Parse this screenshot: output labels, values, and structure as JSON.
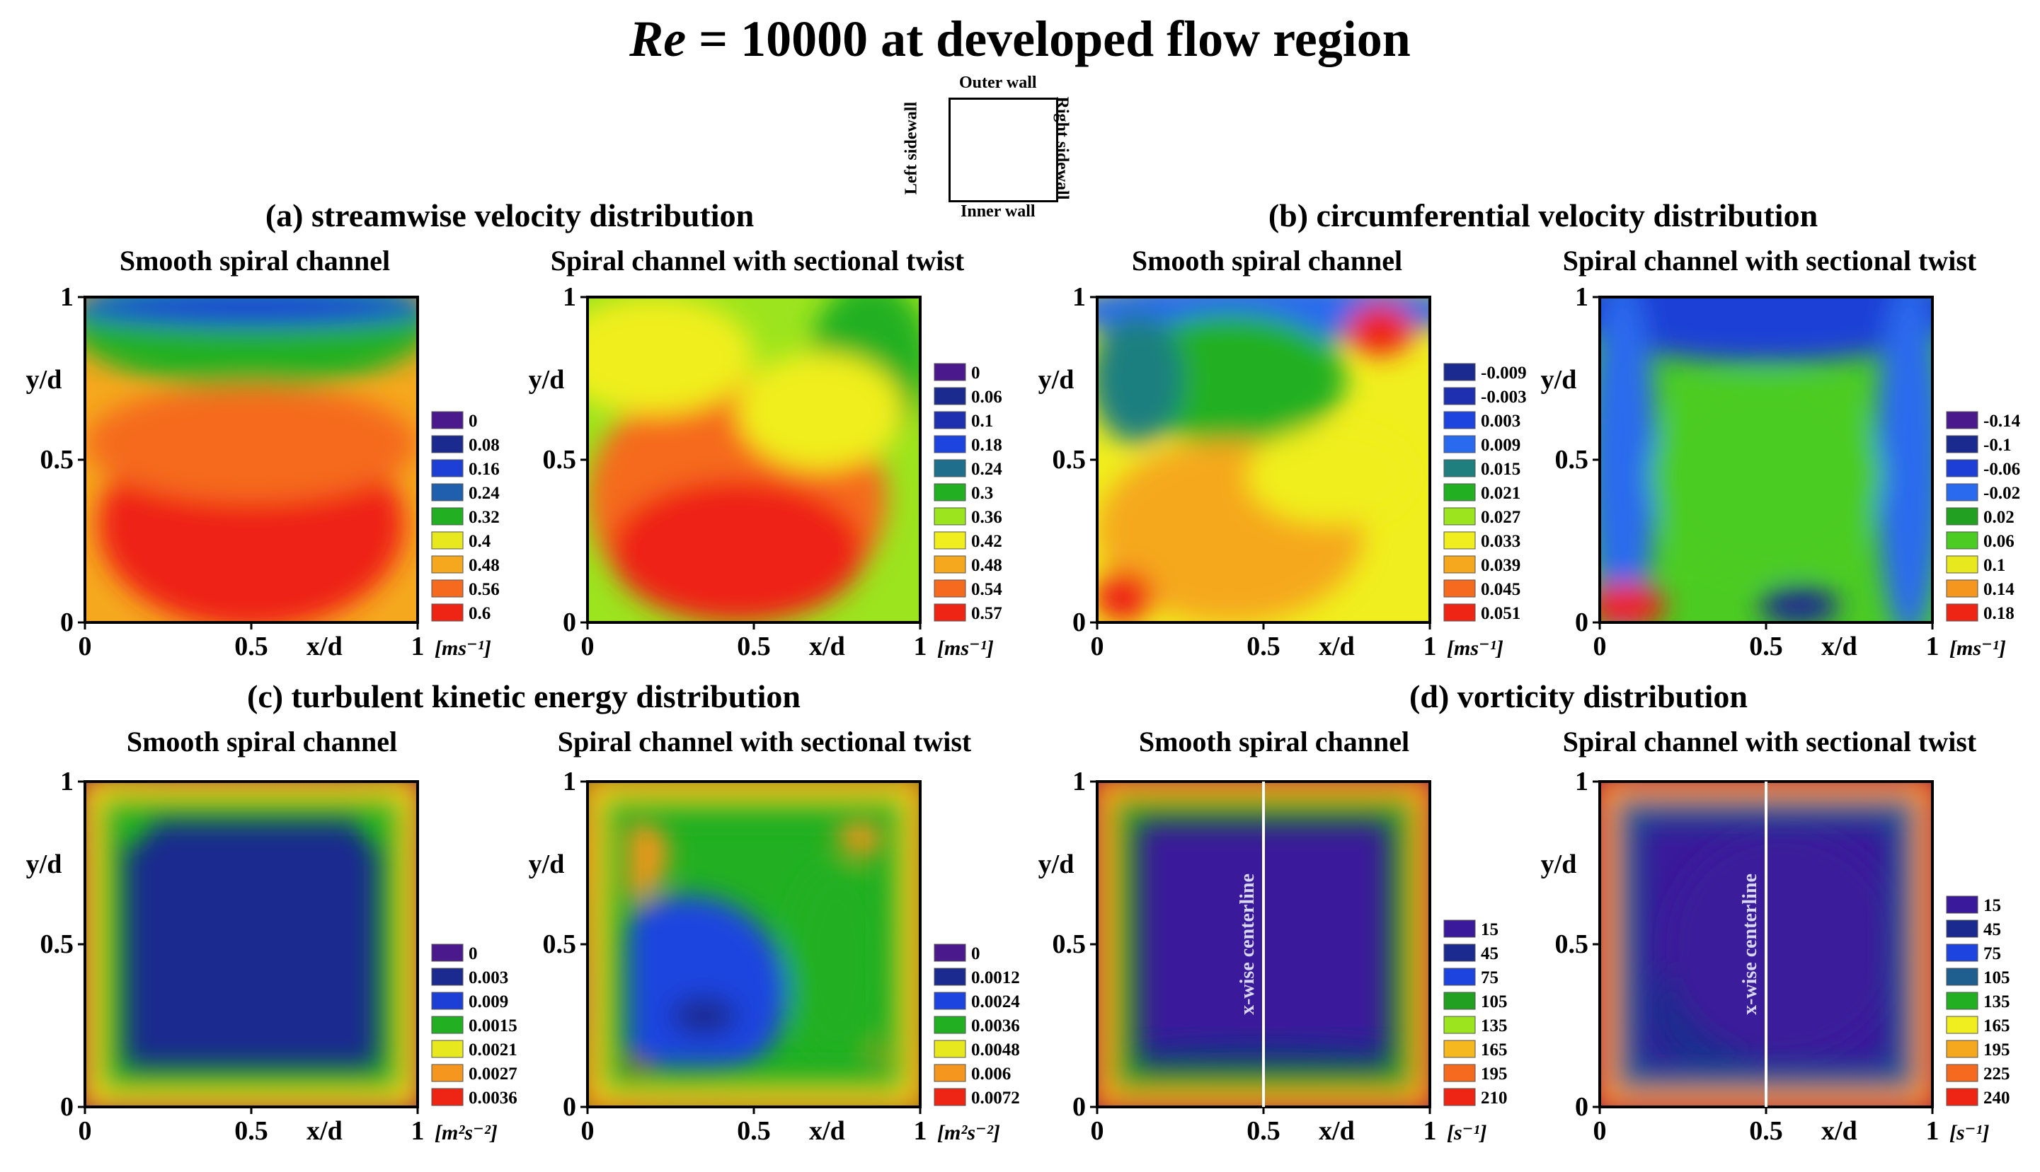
{
  "title": {
    "variable": "Re",
    "rest": " = 10000 at developed flow region"
  },
  "schematic": {
    "top": "Outer wall",
    "bottom": "Inner wall",
    "left": "Left sidewall",
    "right": "Right sidewall"
  },
  "axes": {
    "xlabel": "x/d",
    "ylabel": "y/d",
    "ticks": [
      "0",
      "0.5",
      "1"
    ]
  },
  "groups": [
    {
      "title": "(a) streamwise velocity distribution",
      "left_sub": "Smooth spiral channel",
      "right_sub": "Spiral channel with sectional twist"
    },
    {
      "title": "(b) circumferential velocity distribution",
      "left_sub": "Smooth spiral channel",
      "right_sub": "Spiral channel with sectional twist"
    },
    {
      "title": "(c) turbulent kinetic energy distribution",
      "left_sub": "Smooth spiral channel",
      "right_sub": "Spiral channel with sectional twist"
    },
    {
      "title": "(d) vorticity distribution",
      "left_sub": "Smooth spiral channel",
      "right_sub": "Spiral channel with sectional twist"
    }
  ],
  "centerline_label": "x-wise centerline",
  "chart_data": [
    {
      "type": "heatmap",
      "title": "Streamwise velocity — Smooth spiral channel",
      "xlabel": "x/d",
      "ylabel": "y/d",
      "xlim": [
        0,
        1
      ],
      "ylim": [
        0,
        1
      ],
      "unit": "[ms⁻¹]",
      "levels": [
        "0",
        "0.08",
        "0.16",
        "0.24",
        "0.32",
        "0.4",
        "0.48",
        "0.56",
        "0.6"
      ],
      "colors": [
        "#4a1a8c",
        "#1a2a8f",
        "#1e3fd6",
        "#1f5fae",
        "#22b022",
        "#e8e81e",
        "#f5a81e",
        "#f56a1e",
        "#ee2414"
      ]
    },
    {
      "type": "heatmap",
      "title": "Streamwise velocity — Spiral channel with sectional twist",
      "xlabel": "x/d",
      "ylabel": "y/d",
      "xlim": [
        0,
        1
      ],
      "ylim": [
        0,
        1
      ],
      "unit": "[ms⁻¹]",
      "levels": [
        "0",
        "0.06",
        "0.1",
        "0.18",
        "0.24",
        "0.3",
        "0.36",
        "0.42",
        "0.48",
        "0.54",
        "0.57"
      ],
      "colors": [
        "#4a1a8c",
        "#1a2a8f",
        "#1e2fb0",
        "#1e44e0",
        "#1f6f8c",
        "#22b022",
        "#9ce41e",
        "#f0ee1e",
        "#f5a81e",
        "#f56a1e",
        "#ee2414"
      ]
    },
    {
      "type": "heatmap",
      "title": "Circumferential velocity — Smooth spiral channel",
      "xlabel": "x/d",
      "ylabel": "y/d",
      "xlim": [
        0,
        1
      ],
      "ylim": [
        0,
        1
      ],
      "unit": "[ms⁻¹]",
      "levels": [
        "-0.009",
        "-0.003",
        "0.003",
        "0.009",
        "0.015",
        "0.021",
        "0.027",
        "0.033",
        "0.039",
        "0.045",
        "0.051"
      ],
      "colors": [
        "#1a2a8f",
        "#1e2fb0",
        "#1e44e0",
        "#2a6aee",
        "#1f7f7f",
        "#22b022",
        "#9ce41e",
        "#f0ee1e",
        "#f5a81e",
        "#f56a1e",
        "#ee2414"
      ]
    },
    {
      "type": "heatmap",
      "title": "Circumferential velocity — Spiral channel with sectional twist",
      "xlabel": "x/d",
      "ylabel": "y/d",
      "xlim": [
        0,
        1
      ],
      "ylim": [
        0,
        1
      ],
      "unit": "[ms⁻¹]",
      "levels": [
        "-0.14",
        "-0.1",
        "-0.06",
        "-0.02",
        "0.02",
        "0.06",
        "0.1",
        "0.14",
        "0.18"
      ],
      "colors": [
        "#4a1a8c",
        "#1a2a8f",
        "#1e3fd6",
        "#2a6aee",
        "#22a022",
        "#4ccc22",
        "#e8e81e",
        "#f5961e",
        "#ee2414"
      ]
    },
    {
      "type": "heatmap",
      "title": "Turbulent kinetic energy — Smooth spiral channel",
      "xlabel": "x/d",
      "ylabel": "y/d",
      "xlim": [
        0,
        1
      ],
      "ylim": [
        0,
        1
      ],
      "unit": "[m²s⁻²]",
      "levels": [
        "0",
        "0.003",
        "0.009",
        "0.0015",
        "0.0021",
        "0.0027",
        "0.0036"
      ],
      "colors": [
        "#4a1a8c",
        "#1a2a8f",
        "#1e3fd6",
        "#22b022",
        "#e8e81e",
        "#f5961e",
        "#ee2414"
      ]
    },
    {
      "type": "heatmap",
      "title": "Turbulent kinetic energy — Spiral channel with sectional twist",
      "xlabel": "x/d",
      "ylabel": "y/d",
      "xlim": [
        0,
        1
      ],
      "ylim": [
        0,
        1
      ],
      "unit": "[m²s⁻²]",
      "levels": [
        "0",
        "0.0012",
        "0.0024",
        "0.0036",
        "0.0048",
        "0.006",
        "0.0072"
      ],
      "colors": [
        "#4a1a8c",
        "#1a2a8f",
        "#1e44e0",
        "#22b022",
        "#e8e81e",
        "#f5961e",
        "#ee2414"
      ]
    },
    {
      "type": "heatmap",
      "title": "Vorticity — Smooth spiral channel",
      "xlabel": "x/d",
      "ylabel": "y/d",
      "xlim": [
        0,
        1
      ],
      "ylim": [
        0,
        1
      ],
      "unit": "[s⁻¹]",
      "levels": [
        "15",
        "45",
        "75",
        "105",
        "135",
        "165",
        "195",
        "210"
      ],
      "colors": [
        "#3a1a9a",
        "#1a2a8f",
        "#1e44e0",
        "#22a022",
        "#9ce41e",
        "#f5b81e",
        "#f56a1e",
        "#ee2414"
      ]
    },
    {
      "type": "heatmap",
      "title": "Vorticity — Spiral channel with sectional twist",
      "xlabel": "x/d",
      "ylabel": "y/d",
      "xlim": [
        0,
        1
      ],
      "ylim": [
        0,
        1
      ],
      "unit": "[s⁻¹]",
      "levels": [
        "15",
        "45",
        "75",
        "105",
        "135",
        "165",
        "195",
        "225",
        "240"
      ],
      "colors": [
        "#3a1a9a",
        "#1a2a8f",
        "#1e44e0",
        "#1f5f8f",
        "#22b022",
        "#f0ee1e",
        "#f5a81e",
        "#f56a1e",
        "#ee2414"
      ]
    }
  ]
}
